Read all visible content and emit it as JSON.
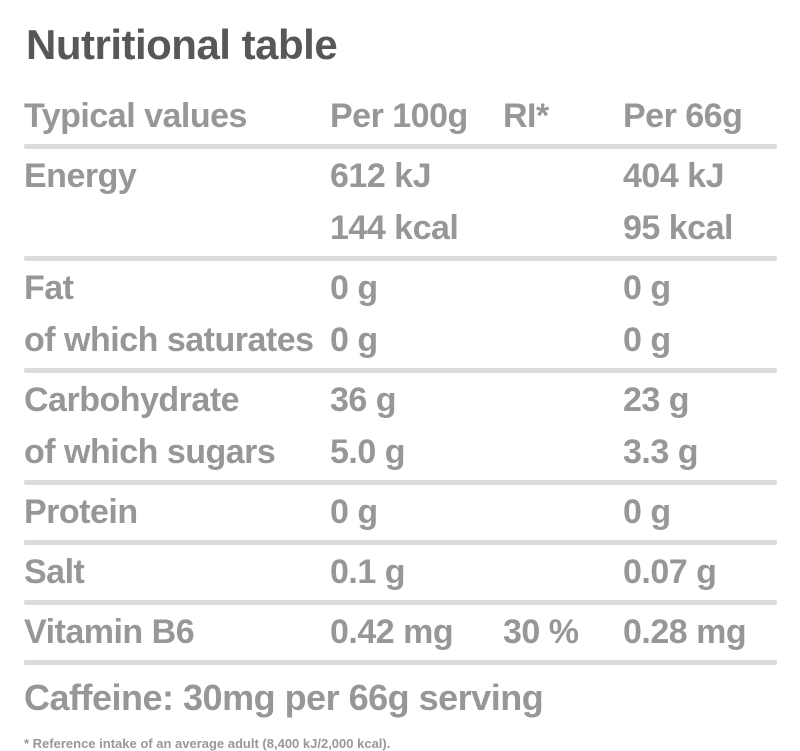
{
  "colors": {
    "title_text": "#57575a",
    "body_text": "#97979a",
    "divider": "#dbdbdb",
    "background": "#ffffff"
  },
  "chart_data": {
    "type": "table",
    "title": "Nutritional table",
    "columns": [
      "Typical values",
      "Per 100g",
      "RI*",
      "Per 66g"
    ],
    "rows": [
      {
        "label": "Energy",
        "per100": "612 kJ",
        "ri": "",
        "per66": "404 kJ"
      },
      {
        "label": "",
        "per100": "144 kcal",
        "ri": "",
        "per66": "95 kcal"
      },
      {
        "label": "Fat",
        "per100": "0 g",
        "ri": "",
        "per66": "0 g"
      },
      {
        "label": "of which saturates",
        "per100": "0 g",
        "ri": "",
        "per66": "0 g"
      },
      {
        "label": "Carbohydrate",
        "per100": "36 g",
        "ri": "",
        "per66": "23 g"
      },
      {
        "label": "of which sugars",
        "per100": "5.0 g",
        "ri": "",
        "per66": "3.3 g"
      },
      {
        "label": "Protein",
        "per100": "0 g",
        "ri": "",
        "per66": "0 g"
      },
      {
        "label": "Salt",
        "per100": "0.1 g",
        "ri": "",
        "per66": "0.07 g"
      },
      {
        "label": "Vitamin B6",
        "per100": "0.42 mg",
        "ri": "30 %",
        "per66": "0.28 mg"
      }
    ],
    "caffeine_note": "Caffeine: 30mg per 66g serving",
    "footnote": "* Reference intake of an average adult (8,400 kJ/2,000 kcal)."
  }
}
